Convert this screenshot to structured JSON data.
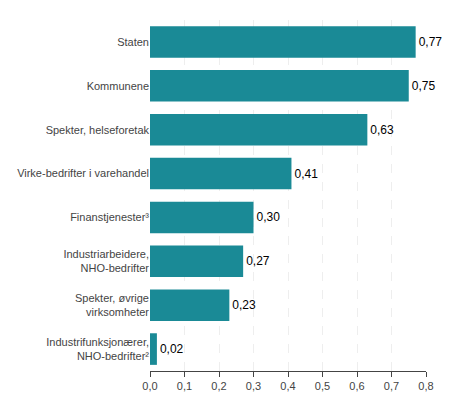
{
  "chart_data": {
    "type": "bar",
    "orientation": "horizontal",
    "categories": [
      "Industrifunksjonærer,\nNHO-bedrifter²",
      "Spekter, øvrige\nvirksomheter",
      "Industriarbeidere,\nNHO-bedrifter",
      "Finanstjenester³",
      "Virke-bedrifter i varehandel",
      "Spekter, helseforetak",
      "Kommunene",
      "Staten"
    ],
    "values": [
      0.02,
      0.23,
      0.27,
      0.3,
      0.41,
      0.63,
      0.75,
      0.77
    ],
    "value_labels": [
      "0,02",
      "0,23",
      "0,27",
      "0,30",
      "0,41",
      "0,63",
      "0,75",
      "0,77"
    ],
    "data_labels": true,
    "color": "#1a8a96",
    "xlim": [
      0.0,
      0.8
    ],
    "xticks": [
      {
        "value": 0.0,
        "label": "0,0"
      },
      {
        "value": 0.1,
        "label": "0,1"
      },
      {
        "value": 0.2,
        "label": "0,2"
      },
      {
        "value": 0.3,
        "label": "0,3"
      },
      {
        "value": 0.4,
        "label": "0,4"
      },
      {
        "value": 0.5,
        "label": "0,5"
      },
      {
        "value": 0.6,
        "label": "0,6"
      },
      {
        "value": 0.7,
        "label": "0,7"
      },
      {
        "value": 0.8,
        "label": "0,8"
      }
    ],
    "grid": true
  }
}
